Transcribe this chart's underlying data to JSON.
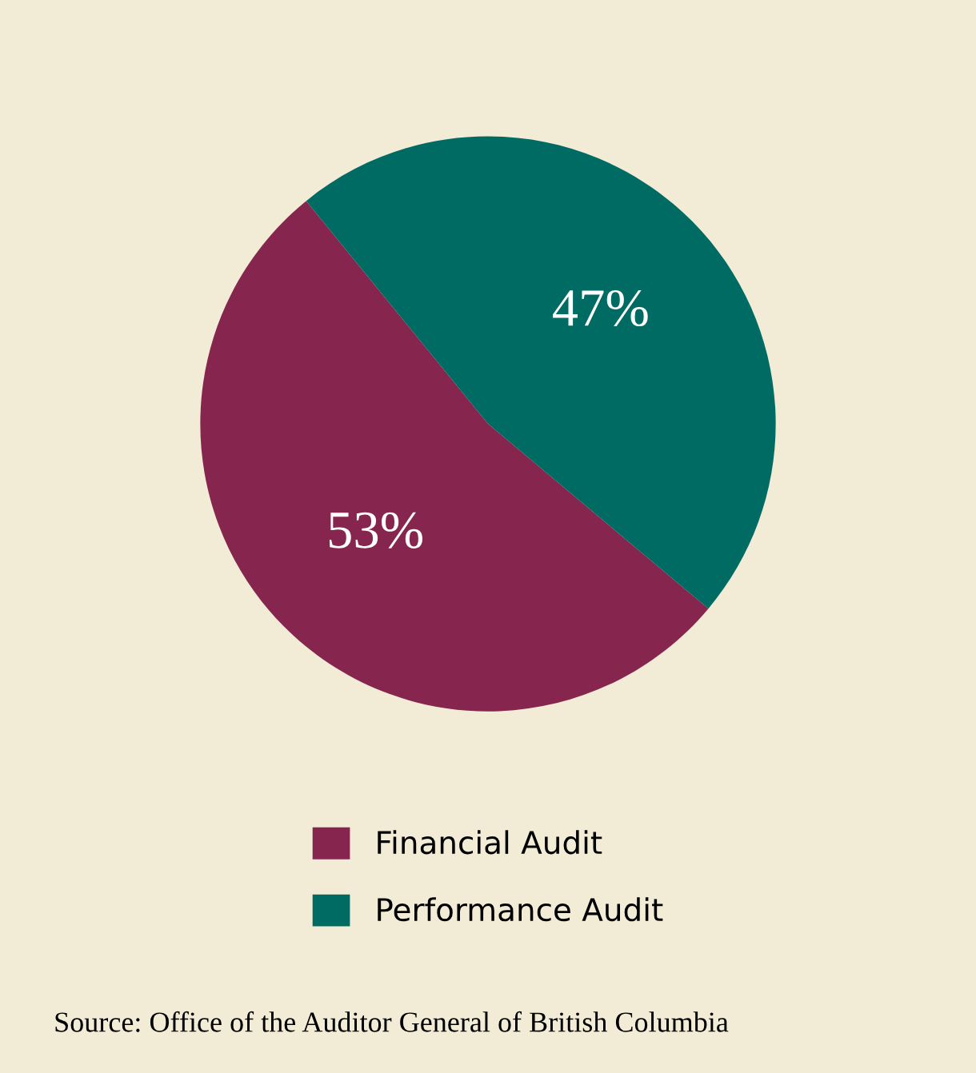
{
  "chart_data": {
    "type": "pie",
    "categories": [
      "Financial Audit",
      "Performance Audit"
    ],
    "values": [
      53,
      47
    ],
    "colors": [
      "#86264f",
      "#006b63"
    ],
    "value_labels": [
      "53%",
      "47%"
    ],
    "legend": "bottom",
    "annotations": [
      "Source: Office of the Auditor General of British Columbia"
    ]
  }
}
